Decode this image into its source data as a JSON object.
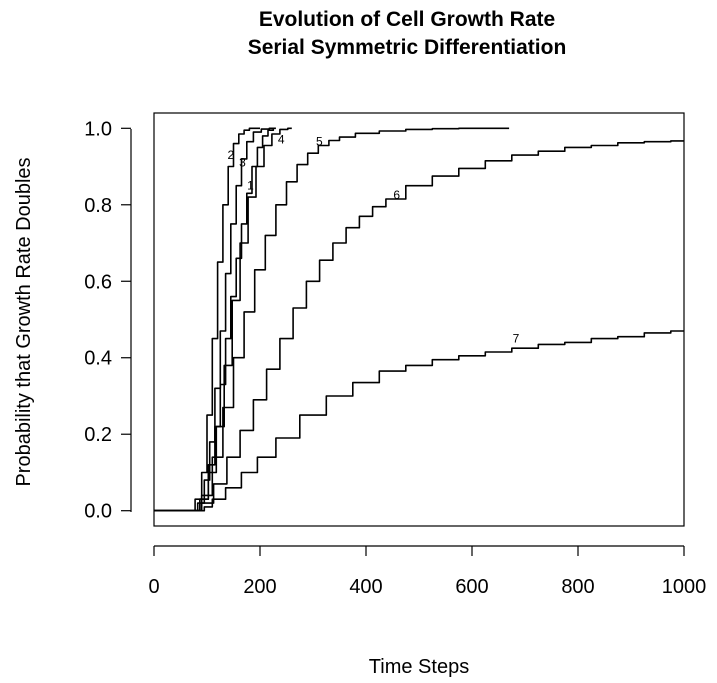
{
  "chart_data": {
    "type": "line",
    "title_line1": "Evolution of Cell Growth Rate",
    "title_line2": "Serial Symmetric Differentiation",
    "xlabel": "Time Steps",
    "ylabel": "Probability that Growth Rate Doubles",
    "xlim": [
      0,
      1000
    ],
    "ylim": [
      -0.04,
      1.04
    ],
    "xticks": [
      0,
      200,
      400,
      600,
      800,
      1000
    ],
    "yticks": [
      0.0,
      0.2,
      0.4,
      0.6,
      0.8,
      1.0
    ],
    "xtick_labels": [
      "0",
      "200",
      "400",
      "600",
      "800",
      "1000"
    ],
    "ytick_labels": [
      "0.0",
      "0.2",
      "0.4",
      "0.6",
      "0.8",
      "1.0"
    ],
    "grid": false,
    "legend": "none",
    "series": [
      {
        "name": "1",
        "label_at": [
          182,
          0.84
        ],
        "x": [
          0,
          78,
          95,
          110,
          120,
          130,
          140,
          150,
          160,
          170,
          180,
          190,
          200,
          210,
          220,
          230
        ],
        "y": [
          0,
          0,
          0.03,
          0.12,
          0.22,
          0.33,
          0.45,
          0.56,
          0.66,
          0.75,
          0.83,
          0.9,
          0.95,
          0.98,
          0.995,
          1.0
        ]
      },
      {
        "name": "2",
        "label_at": [
          145,
          0.92
        ],
        "x": [
          0,
          70,
          85,
          95,
          105,
          115,
          125,
          135,
          145,
          155,
          165,
          175,
          185,
          200
        ],
        "y": [
          0,
          0,
          0.03,
          0.1,
          0.25,
          0.45,
          0.65,
          0.8,
          0.9,
          0.96,
          0.985,
          0.995,
          1.0,
          1.0
        ]
      },
      {
        "name": "3",
        "label_at": [
          167,
          0.9
        ],
        "x": [
          0,
          75,
          90,
          100,
          110,
          120,
          130,
          140,
          150,
          160,
          170,
          180,
          195,
          210,
          225
        ],
        "y": [
          0,
          0,
          0.02,
          0.08,
          0.18,
          0.32,
          0.47,
          0.62,
          0.75,
          0.85,
          0.92,
          0.965,
          0.99,
          0.998,
          1.0
        ]
      },
      {
        "name": "4",
        "label_at": [
          240,
          0.96
        ],
        "x": [
          0,
          78,
          95,
          110,
          125,
          140,
          155,
          170,
          185,
          200,
          215,
          230,
          245,
          260
        ],
        "y": [
          0,
          0,
          0.03,
          0.1,
          0.22,
          0.38,
          0.55,
          0.7,
          0.82,
          0.9,
          0.955,
          0.985,
          0.997,
          1.0
        ]
      },
      {
        "name": "5",
        "label_at": [
          312,
          0.955
        ],
        "x": [
          0,
          80,
          100,
          120,
          140,
          160,
          180,
          200,
          220,
          240,
          260,
          280,
          300,
          320,
          340,
          360,
          400,
          450,
          500,
          550,
          600,
          650,
          670
        ],
        "y": [
          0,
          0,
          0.04,
          0.14,
          0.27,
          0.4,
          0.52,
          0.63,
          0.72,
          0.8,
          0.86,
          0.905,
          0.935,
          0.955,
          0.968,
          0.977,
          0.987,
          0.993,
          0.997,
          0.999,
          1.0,
          1.0,
          1.0
        ]
      },
      {
        "name": "6",
        "label_at": [
          458,
          0.815
        ],
        "x": [
          0,
          80,
          100,
          125,
          150,
          175,
          200,
          225,
          250,
          275,
          300,
          325,
          350,
          375,
          400,
          425,
          450,
          500,
          550,
          600,
          650,
          700,
          750,
          800,
          850,
          900,
          950,
          1000
        ],
        "y": [
          0,
          0,
          0.02,
          0.07,
          0.14,
          0.21,
          0.29,
          0.37,
          0.45,
          0.53,
          0.6,
          0.655,
          0.7,
          0.74,
          0.77,
          0.795,
          0.815,
          0.85,
          0.875,
          0.895,
          0.915,
          0.93,
          0.94,
          0.95,
          0.955,
          0.962,
          0.965,
          0.967
        ]
      },
      {
        "name": "7",
        "label_at": [
          683,
          0.44
        ],
        "x": [
          0,
          90,
          100,
          120,
          150,
          180,
          210,
          250,
          300,
          350,
          400,
          450,
          500,
          550,
          600,
          650,
          700,
          750,
          800,
          850,
          900,
          950,
          1000
        ],
        "y": [
          0,
          0,
          0.01,
          0.03,
          0.06,
          0.1,
          0.14,
          0.19,
          0.25,
          0.3,
          0.335,
          0.365,
          0.38,
          0.395,
          0.405,
          0.415,
          0.425,
          0.435,
          0.44,
          0.45,
          0.455,
          0.465,
          0.47
        ]
      }
    ]
  }
}
